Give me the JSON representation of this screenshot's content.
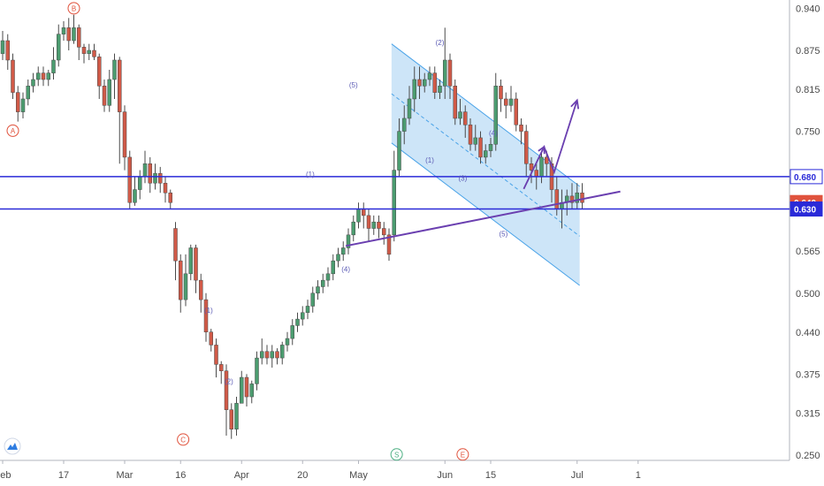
{
  "chart_data": {
    "type": "candlestick",
    "title": "",
    "price_axis": {
      "ticks": [
        0.94,
        0.875,
        0.815,
        0.75,
        0.68,
        0.64,
        0.63,
        0.565,
        0.5,
        0.44,
        0.375,
        0.315,
        0.25
      ],
      "labels": [
        "0.940",
        "0.875",
        "0.815",
        "0.750",
        "0.680",
        "0.640",
        "0.630",
        "0.565",
        "0.500",
        "0.440",
        "0.375",
        "0.315",
        "0.250"
      ],
      "ylim": [
        0.24,
        0.95
      ],
      "tagged_levels": [
        {
          "label": "0.680",
          "value": 0.68,
          "color": "#2a2ad8",
          "text_color": "#2a2ad8",
          "background": "#ffffff"
        },
        {
          "label": "0.640",
          "value": 0.64,
          "color": "#e0533d",
          "text_color": "#ffffff",
          "background": "#e0533d"
        },
        {
          "label": "0.630",
          "value": 0.63,
          "color": "#2a2ad8",
          "text_color": "#ffffff",
          "background": "#2a2ad8"
        }
      ],
      "hidden_tick_labels": [
        "0.680"
      ]
    },
    "time_axis": {
      "labels": [
        "Feb",
        "17",
        "Mar",
        "16",
        "Apr",
        "20",
        "May",
        "Jun",
        "15",
        "Jul",
        "1"
      ],
      "label_index": [
        0,
        12,
        24,
        35,
        47,
        59,
        70,
        87,
        96,
        113,
        125
      ]
    },
    "horizontal_lines": [
      {
        "value": 0.68,
        "color": "#2a2ad8"
      },
      {
        "value": 0.63,
        "color": "#2a2ad8"
      }
    ],
    "trendline": {
      "color": "#6a3fb0",
      "from": {
        "i": 67.5,
        "price": 0.573
      },
      "to": {
        "i": 121.5,
        "price": 0.657
      }
    },
    "channel": {
      "color": "#4aa3e8",
      "fill": "#bcdcf6",
      "upper": [
        {
          "i": 76.5,
          "price": 0.885
        },
        {
          "i": 113.5,
          "price": 0.665
        }
      ],
      "lower": [
        {
          "i": 76.5,
          "price": 0.732
        },
        {
          "i": 113.5,
          "price": 0.512
        }
      ],
      "mid": [
        {
          "i": 76.5,
          "price": 0.808
        },
        {
          "i": 113.5,
          "price": 0.588
        }
      ]
    },
    "projection": {
      "color": "#6a3fb0",
      "points": [
        {
          "i": 102.5,
          "price": 0.661
        },
        {
          "i": 106.5,
          "price": 0.726
        },
        {
          "i": 108.5,
          "price": 0.687
        },
        {
          "i": 113.0,
          "price": 0.798
        }
      ]
    },
    "wave_labels": [
      {
        "text": "(5)",
        "i": 69,
        "price": 0.818
      },
      {
        "text": "(2)",
        "i": 86,
        "price": 0.883
      },
      {
        "text": "(1)",
        "i": 84,
        "price": 0.702
      },
      {
        "text": "(3)",
        "i": 90.5,
        "price": 0.674
      },
      {
        "text": "(4)",
        "i": 96.5,
        "price": 0.743
      },
      {
        "text": "(5)",
        "i": 98.5,
        "price": 0.588
      },
      {
        "text": "(1)",
        "i": 60.5,
        "price": 0.68
      },
      {
        "text": "(4)",
        "i": 67.5,
        "price": 0.533
      },
      {
        "text": "(1)",
        "i": 40.5,
        "price": 0.47
      },
      {
        "text": "(2)",
        "i": 44.5,
        "price": 0.36
      }
    ],
    "circle_labels": [
      {
        "text": "B",
        "i": 14,
        "price": 0.94,
        "color": "#e0533d"
      },
      {
        "text": "A",
        "i": 2,
        "price": 0.751,
        "color": "#e0533d"
      },
      {
        "text": "C",
        "i": 35.5,
        "price": 0.274,
        "color": "#e0533d"
      },
      {
        "text": "S",
        "i": 77.5,
        "price": 0.251,
        "color": "#4caf82"
      },
      {
        "text": "E",
        "i": 90.5,
        "price": 0.251,
        "color": "#e0533d"
      }
    ],
    "candles": [
      [
        0.87,
        0.89,
        0.905,
        0.86
      ],
      [
        0.89,
        0.86,
        0.9,
        0.845
      ],
      [
        0.86,
        0.81,
        0.87,
        0.8
      ],
      [
        0.81,
        0.78,
        0.82,
        0.765
      ],
      [
        0.78,
        0.8,
        0.81,
        0.77
      ],
      [
        0.8,
        0.82,
        0.83,
        0.79
      ],
      [
        0.82,
        0.83,
        0.84,
        0.81
      ],
      [
        0.83,
        0.84,
        0.85,
        0.82
      ],
      [
        0.84,
        0.83,
        0.85,
        0.82
      ],
      [
        0.83,
        0.84,
        0.845,
        0.82
      ],
      [
        0.84,
        0.86,
        0.88,
        0.83
      ],
      [
        0.86,
        0.9,
        0.915,
        0.85
      ],
      [
        0.9,
        0.91,
        0.92,
        0.89
      ],
      [
        0.91,
        0.89,
        0.925,
        0.875
      ],
      [
        0.89,
        0.91,
        0.93,
        0.885
      ],
      [
        0.91,
        0.88,
        0.915,
        0.86
      ],
      [
        0.88,
        0.87,
        0.885,
        0.855
      ],
      [
        0.87,
        0.875,
        0.885,
        0.86
      ],
      [
        0.875,
        0.865,
        0.885,
        0.86
      ],
      [
        0.865,
        0.82,
        0.87,
        0.8
      ],
      [
        0.82,
        0.79,
        0.83,
        0.78
      ],
      [
        0.79,
        0.83,
        0.845,
        0.78
      ],
      [
        0.83,
        0.86,
        0.87,
        0.8
      ],
      [
        0.86,
        0.78,
        0.865,
        0.7
      ],
      [
        0.78,
        0.71,
        0.79,
        0.69
      ],
      [
        0.71,
        0.64,
        0.72,
        0.63
      ],
      [
        0.64,
        0.66,
        0.68,
        0.635
      ],
      [
        0.66,
        0.68,
        0.69,
        0.645
      ],
      [
        0.68,
        0.7,
        0.72,
        0.67
      ],
      [
        0.7,
        0.67,
        0.71,
        0.655
      ],
      [
        0.67,
        0.685,
        0.7,
        0.66
      ],
      [
        0.685,
        0.67,
        0.695,
        0.655
      ],
      [
        0.67,
        0.655,
        0.68,
        0.64
      ],
      [
        0.655,
        0.64,
        0.66,
        0.63
      ],
      [
        0.6,
        0.55,
        0.61,
        0.52
      ],
      [
        0.55,
        0.49,
        0.56,
        0.47
      ],
      [
        0.49,
        0.53,
        0.56,
        0.48
      ],
      [
        0.53,
        0.57,
        0.575,
        0.52
      ],
      [
        0.57,
        0.52,
        0.575,
        0.5
      ],
      [
        0.52,
        0.49,
        0.53,
        0.47
      ],
      [
        0.49,
        0.44,
        0.5,
        0.425
      ],
      [
        0.44,
        0.42,
        0.445,
        0.41
      ],
      [
        0.42,
        0.39,
        0.43,
        0.37
      ],
      [
        0.39,
        0.38,
        0.395,
        0.36
      ],
      [
        0.38,
        0.32,
        0.39,
        0.28
      ],
      [
        0.32,
        0.29,
        0.33,
        0.275
      ],
      [
        0.29,
        0.33,
        0.34,
        0.28
      ],
      [
        0.33,
        0.37,
        0.38,
        0.33
      ],
      [
        0.37,
        0.34,
        0.375,
        0.325
      ],
      [
        0.34,
        0.36,
        0.365,
        0.33
      ],
      [
        0.36,
        0.4,
        0.41,
        0.35
      ],
      [
        0.4,
        0.41,
        0.43,
        0.39
      ],
      [
        0.41,
        0.4,
        0.42,
        0.39
      ],
      [
        0.4,
        0.41,
        0.42,
        0.385
      ],
      [
        0.41,
        0.4,
        0.415,
        0.39
      ],
      [
        0.4,
        0.42,
        0.425,
        0.39
      ],
      [
        0.42,
        0.43,
        0.44,
        0.41
      ],
      [
        0.43,
        0.45,
        0.46,
        0.42
      ],
      [
        0.45,
        0.46,
        0.47,
        0.44
      ],
      [
        0.46,
        0.47,
        0.48,
        0.45
      ],
      [
        0.47,
        0.48,
        0.49,
        0.46
      ],
      [
        0.48,
        0.5,
        0.51,
        0.47
      ],
      [
        0.5,
        0.51,
        0.52,
        0.49
      ],
      [
        0.51,
        0.52,
        0.53,
        0.5
      ],
      [
        0.52,
        0.53,
        0.54,
        0.51
      ],
      [
        0.53,
        0.55,
        0.56,
        0.52
      ],
      [
        0.55,
        0.56,
        0.57,
        0.54
      ],
      [
        0.56,
        0.57,
        0.58,
        0.55
      ],
      [
        0.57,
        0.59,
        0.6,
        0.56
      ],
      [
        0.59,
        0.61,
        0.62,
        0.58
      ],
      [
        0.61,
        0.63,
        0.64,
        0.6
      ],
      [
        0.63,
        0.62,
        0.64,
        0.6
      ],
      [
        0.62,
        0.6,
        0.63,
        0.58
      ],
      [
        0.6,
        0.61,
        0.62,
        0.59
      ],
      [
        0.61,
        0.6,
        0.62,
        0.585
      ],
      [
        0.6,
        0.59,
        0.61,
        0.575
      ],
      [
        0.59,
        0.56,
        0.6,
        0.55
      ],
      [
        0.59,
        0.69,
        0.72,
        0.58
      ],
      [
        0.69,
        0.75,
        0.77,
        0.68
      ],
      [
        0.75,
        0.77,
        0.79,
        0.73
      ],
      [
        0.77,
        0.8,
        0.82,
        0.76
      ],
      [
        0.8,
        0.83,
        0.85,
        0.78
      ],
      [
        0.83,
        0.82,
        0.85,
        0.8
      ],
      [
        0.82,
        0.83,
        0.84,
        0.81
      ],
      [
        0.83,
        0.84,
        0.85,
        0.82
      ],
      [
        0.84,
        0.81,
        0.85,
        0.8
      ],
      [
        0.81,
        0.82,
        0.83,
        0.8
      ],
      [
        0.82,
        0.86,
        0.91,
        0.8
      ],
      [
        0.86,
        0.82,
        0.87,
        0.8
      ],
      [
        0.82,
        0.77,
        0.83,
        0.76
      ],
      [
        0.77,
        0.78,
        0.8,
        0.76
      ],
      [
        0.78,
        0.76,
        0.79,
        0.74
      ],
      [
        0.76,
        0.73,
        0.77,
        0.72
      ],
      [
        0.73,
        0.74,
        0.76,
        0.72
      ],
      [
        0.74,
        0.71,
        0.75,
        0.7
      ],
      [
        0.71,
        0.72,
        0.73,
        0.7
      ],
      [
        0.72,
        0.73,
        0.74,
        0.71
      ],
      [
        0.73,
        0.82,
        0.84,
        0.72
      ],
      [
        0.82,
        0.8,
        0.83,
        0.78
      ],
      [
        0.8,
        0.79,
        0.81,
        0.77
      ],
      [
        0.79,
        0.8,
        0.82,
        0.78
      ],
      [
        0.8,
        0.76,
        0.81,
        0.75
      ],
      [
        0.76,
        0.75,
        0.77,
        0.73
      ],
      [
        0.75,
        0.7,
        0.76,
        0.68
      ],
      [
        0.7,
        0.69,
        0.71,
        0.67
      ],
      [
        0.69,
        0.68,
        0.7,
        0.66
      ],
      [
        0.68,
        0.71,
        0.72,
        0.67
      ],
      [
        0.71,
        0.7,
        0.72,
        0.68
      ],
      [
        0.7,
        0.66,
        0.71,
        0.64
      ],
      [
        0.66,
        0.63,
        0.68,
        0.62
      ],
      [
        0.63,
        0.64,
        0.66,
        0.6
      ],
      [
        0.64,
        0.65,
        0.66,
        0.62
      ],
      [
        0.65,
        0.64,
        0.67,
        0.63
      ],
      [
        0.64,
        0.655,
        0.67,
        0.63
      ],
      [
        0.655,
        0.64,
        0.67,
        0.63
      ]
    ],
    "colors": {
      "up": "#4c9c70",
      "down": "#d05a48",
      "wick": "#4a4a4a"
    },
    "logo": "tradingview-icon"
  }
}
